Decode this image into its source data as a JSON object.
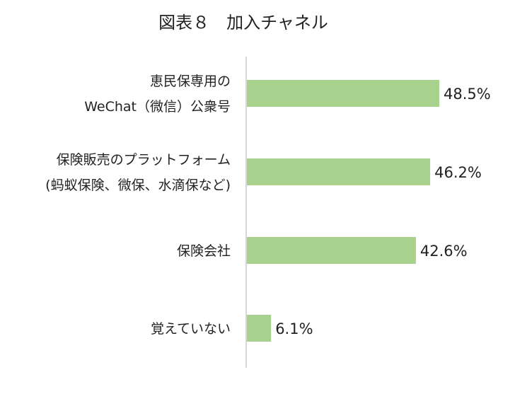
{
  "chart_data": {
    "type": "bar",
    "orientation": "horizontal",
    "title": "図表８　加入チャネル",
    "categories": [
      [
        "恵民保専用の",
        "WeChat（微信）公衆号"
      ],
      [
        "保険販売のプラットフォーム",
        "(蚂蚁保険、微保、水滴保など)"
      ],
      [
        "保険会社"
      ],
      [
        "覚えていない"
      ]
    ],
    "values": [
      48.5,
      46.2,
      42.6,
      6.1
    ],
    "value_labels": [
      "48.5%",
      "46.2%",
      "42.6%",
      "6.1%"
    ],
    "unit": "%",
    "xlim": [
      0,
      62
    ],
    "grid": false,
    "legend": "none",
    "bar_color": "#a9d18e"
  }
}
